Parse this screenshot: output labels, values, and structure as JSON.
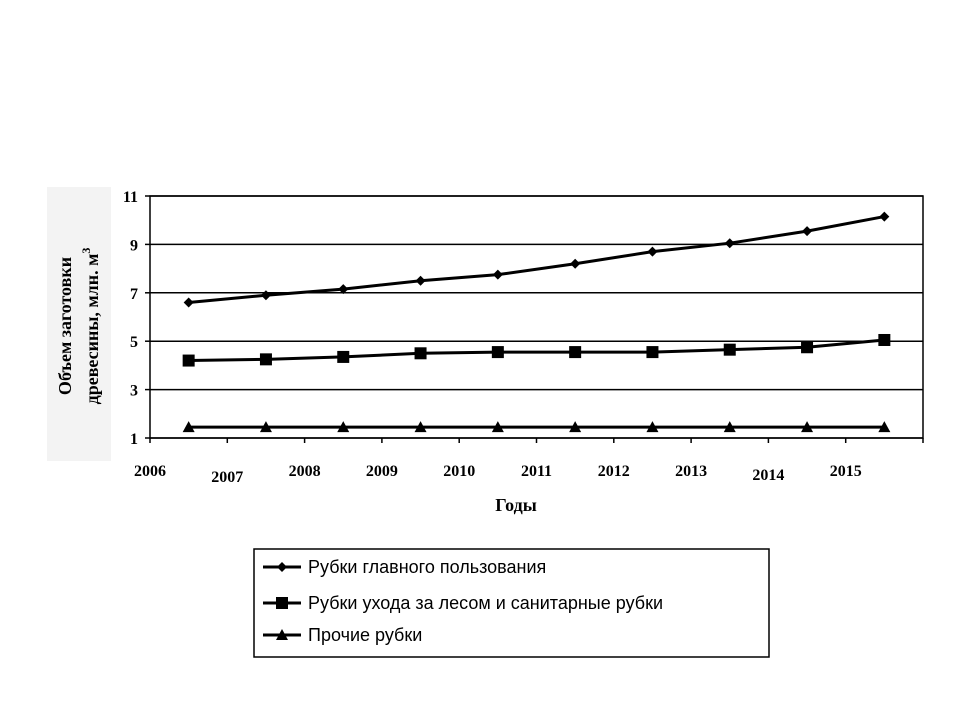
{
  "chart_data": {
    "type": "line",
    "xlabel": "Годы",
    "ylabel_line1": "Объем заготовки",
    "ylabel_line2": "древесины, млн. м",
    "ylabel_sup": "3",
    "x_ticks": [
      "2006",
      "2007",
      "2008",
      "2009",
      "2010",
      "2011",
      "2012",
      "2013",
      "2014",
      "2015"
    ],
    "y_ticks": [
      1,
      3,
      5,
      7,
      9,
      11
    ],
    "ylim": [
      1,
      11
    ],
    "grid": true,
    "legend_position": "bottom",
    "categories": [
      "2006",
      "2007",
      "2008",
      "2009",
      "2010",
      "2011",
      "2012",
      "2013",
      "2014",
      "2015"
    ],
    "series": [
      {
        "name": "Рубки главного пользования",
        "marker": "diamond",
        "values": [
          6.6,
          6.9,
          7.15,
          7.5,
          7.75,
          8.2,
          8.7,
          9.05,
          9.55,
          10.15
        ]
      },
      {
        "name": "Рубки ухода за лесом и санитарные рубки",
        "marker": "square",
        "values": [
          4.2,
          4.25,
          4.35,
          4.5,
          4.55,
          4.55,
          4.55,
          4.65,
          4.75,
          5.05
        ]
      },
      {
        "name": "Прочие рубки",
        "marker": "triangle",
        "values": [
          1.45,
          1.45,
          1.45,
          1.45,
          1.45,
          1.45,
          1.45,
          1.45,
          1.45,
          1.45
        ]
      }
    ]
  }
}
